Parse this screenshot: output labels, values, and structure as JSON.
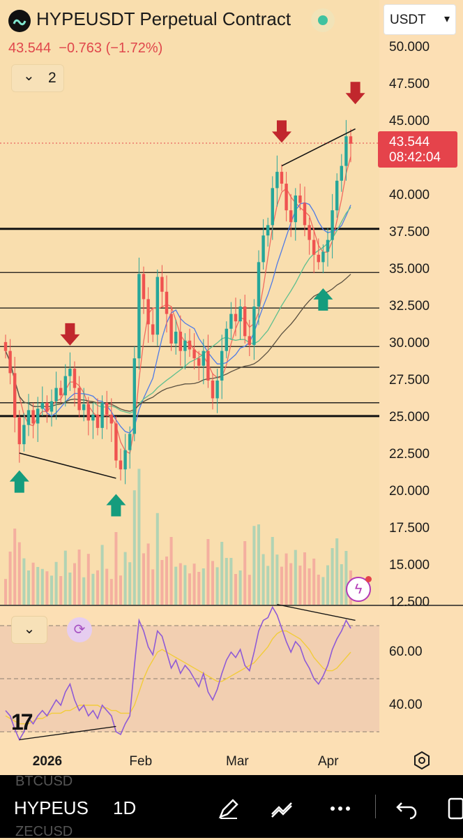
{
  "header": {
    "title": "HYPEUSDT Perpetual Contract",
    "last_price": "43.544",
    "change": "−0.763",
    "change_pct": "(−1.72%)",
    "indicator_count": "2",
    "currency": "USDT",
    "currency_caret": "▾"
  },
  "price_axis": {
    "labels": [
      "50.000",
      "47.500",
      "45.000",
      "40.000",
      "37.500",
      "35.000",
      "32.500",
      "30.000",
      "27.500",
      "25.000",
      "22.500",
      "20.000",
      "17.500",
      "15.000",
      "12.500"
    ],
    "current_price": "43.544",
    "countdown": "08:42:04"
  },
  "rsi_axis": {
    "labels": [
      "60.00",
      "40.00"
    ]
  },
  "time_axis": {
    "labels": [
      "2026",
      "Feb",
      "Mar",
      "Apr"
    ]
  },
  "icons": {
    "collapse": "⌄",
    "sync": "⟳",
    "bolt": "ϟ",
    "tv_logo": "17"
  },
  "bottom_bar": {
    "symbol": "HYPEUS",
    "interval": "1D",
    "ghost_top": "BTCUSD",
    "ghost_bottom": "ZECUSD"
  },
  "colors": {
    "background": "#fcdfb4",
    "up": "#26a69a",
    "down": "#ef5350",
    "arrow_up": "#159c7d",
    "arrow_down": "#c1272d",
    "rsi": "#8e5ad6",
    "rsi_ma": "#f2cc3a",
    "price_tag": "#e5434b"
  },
  "chart_data": {
    "type": "candlestick",
    "symbol": "HYPEUSDT Perpetual Contract",
    "interval": "1D",
    "last_close": 43.544,
    "ylim": [
      12.5,
      50
    ],
    "support_resistance_levels": [
      37.75,
      34.8,
      32.4,
      29.8,
      28.4,
      26.0,
      25.1
    ],
    "closes_approx": [
      29.5,
      28.0,
      25.0,
      23.2,
      24.5,
      25.5,
      24.6,
      25.6,
      26.0,
      25.4,
      26.1,
      27.0,
      26.5,
      27.8,
      28.3,
      27.0,
      25.5,
      25.9,
      24.8,
      25.2,
      24.3,
      26.0,
      25.2,
      24.6,
      22.1,
      21.5,
      22.8,
      23.9,
      29.0,
      34.7,
      33.0,
      31.3,
      30.6,
      34.5,
      33.5,
      32.0,
      30.0,
      30.8,
      29.5,
      30.2,
      29.6,
      29.0,
      28.5,
      29.5,
      27.5,
      26.3,
      27.5,
      29.5,
      31.0,
      32.0,
      31.5,
      32.5,
      30.5,
      29.9,
      32.5,
      35.5,
      37.3,
      38.0,
      40.5,
      41.6,
      40.8,
      39.0,
      38.2,
      40.0,
      39.5,
      38.0,
      37.0,
      36.0,
      35.5,
      36.2,
      37.0,
      39.0,
      41.0,
      42.0,
      44.0,
      43.5
    ],
    "rsi": {
      "levels": [
        70,
        50,
        30
      ],
      "values_approx": [
        38,
        36,
        31,
        27,
        30,
        35,
        33,
        36,
        38,
        36,
        39,
        42,
        40,
        45,
        48,
        42,
        38,
        40,
        36,
        38,
        35,
        40,
        38,
        36,
        30,
        29,
        33,
        36,
        55,
        72,
        68,
        62,
        59,
        68,
        66,
        60,
        54,
        57,
        52,
        55,
        53,
        50,
        47,
        52,
        45,
        42,
        46,
        52,
        57,
        60,
        58,
        61,
        55,
        53,
        60,
        68,
        72,
        73,
        77,
        74,
        69,
        64,
        60,
        64,
        62,
        57,
        54,
        50,
        48,
        51,
        55,
        61,
        65,
        68,
        72,
        69
      ],
      "ma_approx": [
        36,
        35,
        34,
        33,
        33,
        33,
        34,
        35,
        35,
        36,
        37,
        37,
        37,
        38,
        38,
        39,
        40,
        40,
        40,
        40,
        40,
        39,
        39,
        38,
        38,
        37,
        37,
        37,
        40,
        45,
        50,
        54,
        57,
        60,
        61,
        60,
        59,
        58,
        57,
        56,
        55,
        54,
        53,
        52,
        51,
        50,
        49,
        49,
        50,
        51,
        52,
        53,
        54,
        55,
        56,
        58,
        60,
        62,
        65,
        67,
        68,
        68,
        67,
        66,
        65,
        63,
        61,
        58,
        56,
        54,
        53,
        53,
        54,
        56,
        58,
        60
      ]
    },
    "annotations": [
      "red down arrows mark local highs",
      "green up arrows mark local lows",
      "diagonal trend lines drawn on price and RSI panes"
    ]
  }
}
